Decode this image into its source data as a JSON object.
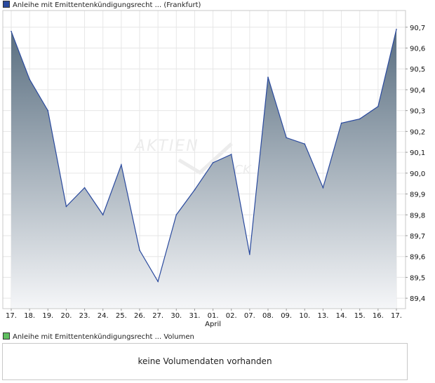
{
  "legend": {
    "price_label": "Anleihe mit Emittentenkündigungsrecht ... (Frankfurt)",
    "price_color": "#2a4a9e",
    "volume_label": "Anleihe mit Emittentenkündigungsrecht ... Volumen",
    "volume_color": "#5fbf5f"
  },
  "volume_panel": {
    "message": "keine Volumendaten vorhanden"
  },
  "watermark": {
    "text": "AKTIEN CHECK"
  },
  "chart_data": {
    "type": "area",
    "x": [
      "17.",
      "18.",
      "19.",
      "20.",
      "23.",
      "24.",
      "25.",
      "26.",
      "27.",
      "30.",
      "31.",
      "01.",
      "02.",
      "07.",
      "08.",
      "09.",
      "10.",
      "13.",
      "14.",
      "15.",
      "16.",
      "17."
    ],
    "x_sublabels": {
      "01.": "April"
    },
    "series": [
      {
        "values": [
          90.68,
          90.45,
          90.3,
          89.84,
          89.93,
          89.8,
          90.04,
          89.63,
          89.48,
          89.8,
          89.92,
          90.05,
          90.09,
          89.61,
          90.46,
          90.17,
          90.14,
          89.93,
          90.24,
          90.26,
          90.32,
          90.69
        ],
        "line_color": "#2a4a9e",
        "fill_top": "#596e80",
        "fill_bottom": "#f5f6f8"
      }
    ],
    "y_ticks": [
      "90,7",
      "90,6",
      "90,5",
      "90,4",
      "90,3",
      "90,2",
      "90,1",
      "90,0",
      "89,9",
      "89,8",
      "89,7",
      "89,6",
      "89,5",
      "89,4"
    ],
    "ylim": [
      89.35,
      90.78
    ],
    "grid": true
  }
}
